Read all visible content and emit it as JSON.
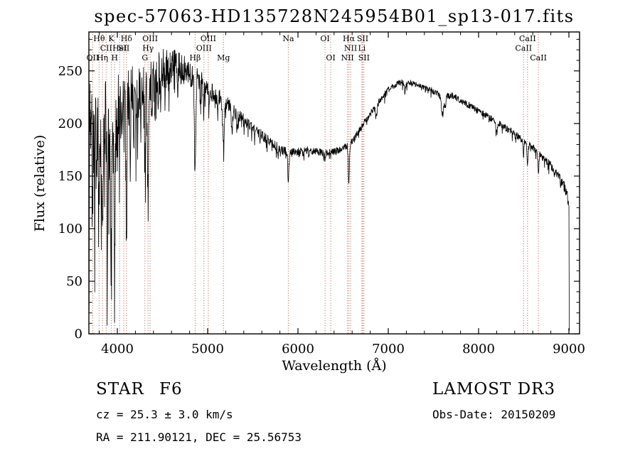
{
  "annotations": {
    "classification": "STAR",
    "subclass": "F6",
    "survey": "LAMOST DR3",
    "cz": "cz = 25.3 ± 3.0 km/s",
    "obs_date": "Obs-Date: 20150209",
    "ra_dec": "RA = 211.90121, DEC = 25.56753"
  },
  "chart_data": {
    "type": "line",
    "title": "spec-57063-HD135728N245954B01_sp13-017.fits",
    "xlabel": "Wavelength (Å)",
    "ylabel": "Flux (relative)",
    "xlim": [
      3685,
      9118
    ],
    "ylim": [
      0,
      287
    ],
    "xticks": [
      4000,
      5000,
      6000,
      7000,
      8000,
      9000
    ],
    "yticks": [
      0,
      50,
      100,
      150,
      200,
      250
    ],
    "x_minor_step": 200,
    "y_minor_step": 10,
    "grid": false,
    "legend": "none",
    "line_color": "#000000",
    "marker_color": "#a85848",
    "noise_seed": 20150209,
    "wl_start": 3687,
    "wl_end": 9000,
    "wl_step": 3,
    "tail": [
      [
        9001,
        100
      ],
      [
        9003,
        40
      ],
      [
        9005,
        3
      ]
    ],
    "continuum": [
      [
        3687,
        190
      ],
      [
        3700,
        196
      ],
      [
        3750,
        202
      ],
      [
        3800,
        207
      ],
      [
        3850,
        209
      ],
      [
        3900,
        211
      ],
      [
        3950,
        213
      ],
      [
        4000,
        216
      ],
      [
        4050,
        218
      ],
      [
        4100,
        221
      ],
      [
        4150,
        224
      ],
      [
        4200,
        228
      ],
      [
        4250,
        232
      ],
      [
        4300,
        236
      ],
      [
        4350,
        240
      ],
      [
        4400,
        243
      ],
      [
        4450,
        247
      ],
      [
        4500,
        251
      ],
      [
        4550,
        253
      ],
      [
        4600,
        255
      ],
      [
        4650,
        254
      ],
      [
        4700,
        252
      ],
      [
        4750,
        250
      ],
      [
        4800,
        248
      ],
      [
        4850,
        244
      ],
      [
        4900,
        240
      ],
      [
        4950,
        237
      ],
      [
        5000,
        233
      ],
      [
        5100,
        227
      ],
      [
        5200,
        219
      ],
      [
        5300,
        211
      ],
      [
        5400,
        204
      ],
      [
        5500,
        196
      ],
      [
        5600,
        189
      ],
      [
        5700,
        182
      ],
      [
        5800,
        176
      ],
      [
        5900,
        172
      ],
      [
        6000,
        173
      ],
      [
        6100,
        175
      ],
      [
        6200,
        174
      ],
      [
        6300,
        172
      ],
      [
        6400,
        173
      ],
      [
        6500,
        176
      ],
      [
        6600,
        183
      ],
      [
        6700,
        196
      ],
      [
        6800,
        209
      ],
      [
        6900,
        222
      ],
      [
        7000,
        232
      ],
      [
        7100,
        238
      ],
      [
        7200,
        240
      ],
      [
        7300,
        237
      ],
      [
        7400,
        234
      ],
      [
        7500,
        231
      ],
      [
        7600,
        225
      ],
      [
        7700,
        227
      ],
      [
        7800,
        222
      ],
      [
        7900,
        217
      ],
      [
        8000,
        212
      ],
      [
        8100,
        207
      ],
      [
        8200,
        201
      ],
      [
        8300,
        196
      ],
      [
        8400,
        190
      ],
      [
        8500,
        184
      ],
      [
        8600,
        177
      ],
      [
        8700,
        169
      ],
      [
        8800,
        160
      ],
      [
        8900,
        148
      ],
      [
        8950,
        140
      ],
      [
        9000,
        126
      ]
    ],
    "noise_amp": [
      [
        3687,
        48
      ],
      [
        3800,
        44
      ],
      [
        3900,
        42
      ],
      [
        4000,
        39
      ],
      [
        4100,
        36
      ],
      [
        4200,
        32
      ],
      [
        4300,
        28
      ],
      [
        4400,
        24
      ],
      [
        4500,
        20
      ],
      [
        4600,
        17
      ],
      [
        4700,
        15
      ],
      [
        4800,
        13
      ],
      [
        4900,
        12
      ],
      [
        5000,
        10
      ],
      [
        5200,
        8
      ],
      [
        5400,
        6.5
      ],
      [
        5600,
        5.5
      ],
      [
        5800,
        4.5
      ],
      [
        6000,
        4
      ],
      [
        6300,
        3.5
      ],
      [
        6600,
        3.2
      ],
      [
        7000,
        3
      ],
      [
        7500,
        3
      ],
      [
        8000,
        3
      ],
      [
        8500,
        3.5
      ],
      [
        8800,
        4
      ],
      [
        9000,
        5
      ]
    ],
    "absorption_lines": [
      [
        3687,
        150,
        3
      ],
      [
        3727,
        50,
        4
      ],
      [
        3750,
        70,
        4
      ],
      [
        3770,
        80,
        4
      ],
      [
        3798,
        105,
        5
      ],
      [
        3820,
        65,
        4
      ],
      [
        3835,
        115,
        5
      ],
      [
        3860,
        55,
        4
      ],
      [
        3889,
        130,
        5
      ],
      [
        3910,
        45,
        4
      ],
      [
        3933,
        150,
        6
      ],
      [
        3970,
        140,
        6
      ],
      [
        4000,
        50,
        4
      ],
      [
        4026,
        60,
        4
      ],
      [
        4045,
        40,
        3
      ],
      [
        4072,
        45,
        4
      ],
      [
        4101,
        135,
        6
      ],
      [
        4144,
        50,
        4
      ],
      [
        4180,
        40,
        4
      ],
      [
        4226,
        60,
        4
      ],
      [
        4260,
        40,
        4
      ],
      [
        4305,
        70,
        7
      ],
      [
        4340,
        110,
        6
      ],
      [
        4383,
        55,
        4
      ],
      [
        4415,
        35,
        4
      ],
      [
        4450,
        30,
        4
      ],
      [
        4481,
        35,
        4
      ],
      [
        4530,
        30,
        4
      ],
      [
        4571,
        25,
        4
      ],
      [
        4668,
        30,
        4
      ],
      [
        4861,
        90,
        7
      ],
      [
        4920,
        25,
        4
      ],
      [
        4957,
        25,
        4
      ],
      [
        5015,
        20,
        4
      ],
      [
        5110,
        20,
        4
      ],
      [
        5175,
        40,
        9
      ],
      [
        5270,
        25,
        6
      ],
      [
        5328,
        15,
        4
      ],
      [
        5405,
        12,
        4
      ],
      [
        5780,
        8,
        5
      ],
      [
        5893,
        26,
        6
      ],
      [
        6122,
        8,
        4
      ],
      [
        6300,
        8,
        4
      ],
      [
        6563,
        40,
        6
      ],
      [
        6867,
        10,
        10
      ],
      [
        7186,
        8,
        10
      ],
      [
        7600,
        16,
        12
      ],
      [
        7630,
        10,
        8
      ],
      [
        8200,
        8,
        10
      ],
      [
        8498,
        14,
        5
      ],
      [
        8542,
        22,
        6
      ],
      [
        8662,
        18,
        6
      ]
    ],
    "spectral_lines": [
      {
        "wl": 3727,
        "label": "OII",
        "row": 3
      },
      {
        "wl": 3798,
        "label": "Hθ",
        "row": 1
      },
      {
        "wl": 3835,
        "label": "Hη",
        "row": 3
      },
      {
        "wl": 3876,
        "label": "CII",
        "row": 2
      },
      {
        "wl": 3933,
        "label": "K",
        "row": 1
      },
      {
        "wl": 3970,
        "label": "H",
        "row": 3
      },
      {
        "wl": 4026,
        "label": "HeI",
        "row": 2
      },
      {
        "wl": 4072,
        "label": "SII",
        "row": 2
      },
      {
        "wl": 4101,
        "label": "Hδ",
        "row": 1
      },
      {
        "wl": 4305,
        "label": "G",
        "row": 3
      },
      {
        "wl": 4340,
        "label": "Hγ",
        "row": 2
      },
      {
        "wl": 4363,
        "label": "OIII",
        "row": 1
      },
      {
        "wl": 4861,
        "label": "Hβ",
        "row": 3
      },
      {
        "wl": 4959,
        "label": "OIII",
        "row": 2
      },
      {
        "wl": 5007,
        "label": "OIII",
        "row": 1
      },
      {
        "wl": 5175,
        "label": "Mg",
        "row": 3
      },
      {
        "wl": 5893,
        "label": "Na",
        "row": 1
      },
      {
        "wl": 6300,
        "label": "OI",
        "row": 1
      },
      {
        "wl": 6363,
        "label": "OI",
        "row": 3
      },
      {
        "wl": 6548,
        "label": "NII",
        "row": 3
      },
      {
        "wl": 6563,
        "label": "Hα",
        "row": 1
      },
      {
        "wl": 6583,
        "label": "NII",
        "row": 2
      },
      {
        "wl": 6708,
        "label": "Li",
        "row": 2
      },
      {
        "wl": 6716,
        "label": "SII",
        "row": 1
      },
      {
        "wl": 6731,
        "label": "SII",
        "row": 3
      },
      {
        "wl": 8498,
        "label": "CaII",
        "row": 2
      },
      {
        "wl": 8542,
        "label": "CaII",
        "row": 1
      },
      {
        "wl": 8662,
        "label": "CaII",
        "row": 3
      }
    ]
  }
}
